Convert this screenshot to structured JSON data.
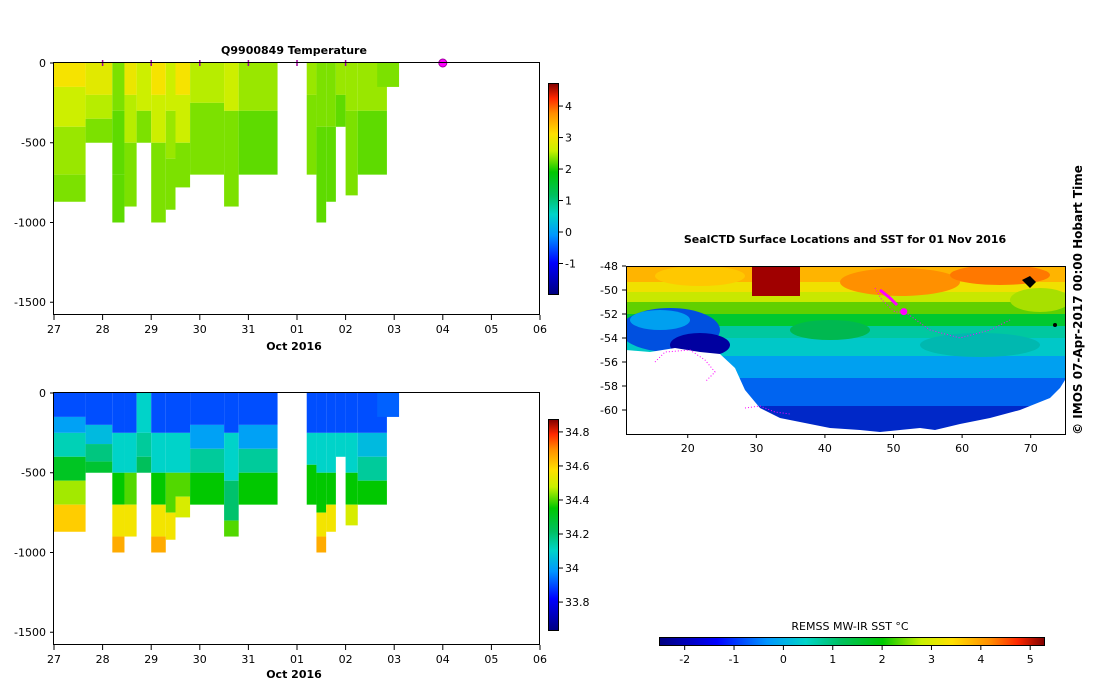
{
  "chart_data": [
    {
      "type": "heatmap",
      "name": "temperature-section",
      "title": "Q9900849  Temperature",
      "xlabel": "Oct 2016",
      "x_ticks": [
        "27",
        "28",
        "29",
        "30",
        "31",
        "01",
        "02",
        "03",
        "04",
        "05",
        "06"
      ],
      "y_ticks": [
        "0",
        "-500",
        "-1000",
        "-1500"
      ],
      "ylim": [
        -1580,
        0
      ],
      "colorbar_ticks": [
        "4",
        "3",
        "2",
        "1",
        "0",
        "-1"
      ],
      "colorbar_range": [
        -2,
        4.7
      ],
      "profile_markers": [
        28,
        29,
        30,
        31,
        32,
        33
      ],
      "current_marker": 35,
      "profiles": [
        {
          "x0": 27.0,
          "x1": 27.65,
          "depth": -870,
          "layers": [
            [
              0,
              3.0
            ],
            [
              -150,
              2.6
            ],
            [
              -400,
              2.4
            ],
            [
              -700,
              2.3
            ]
          ]
        },
        {
          "x0": 27.65,
          "x1": 28.2,
          "depth": -500,
          "layers": [
            [
              0,
              2.8
            ],
            [
              -200,
              2.5
            ],
            [
              -350,
              2.3
            ]
          ]
        },
        {
          "x0": 28.2,
          "x1": 28.45,
          "depth": -1000,
          "layers": [
            [
              0,
              2.3
            ],
            [
              -300,
              2.2
            ],
            [
              -700,
              2.2
            ]
          ]
        },
        {
          "x0": 28.45,
          "x1": 28.7,
          "depth": -900,
          "layers": [
            [
              0,
              2.9
            ],
            [
              -200,
              2.5
            ],
            [
              -500,
              2.3
            ]
          ]
        },
        {
          "x0": 28.7,
          "x1": 29.0,
          "depth": -500,
          "layers": [
            [
              0,
              2.6
            ],
            [
              -300,
              2.3
            ]
          ]
        },
        {
          "x0": 29.0,
          "x1": 29.3,
          "depth": -1000,
          "layers": [
            [
              0,
              3.0
            ],
            [
              -200,
              2.6
            ],
            [
              -500,
              2.3
            ]
          ]
        },
        {
          "x0": 29.3,
          "x1": 29.5,
          "depth": -920,
          "layers": [
            [
              0,
              2.6
            ],
            [
              -300,
              2.4
            ],
            [
              -600,
              2.3
            ]
          ]
        },
        {
          "x0": 29.5,
          "x1": 29.8,
          "depth": -780,
          "layers": [
            [
              0,
              3.0
            ],
            [
              -200,
              2.6
            ],
            [
              -500,
              2.3
            ]
          ]
        },
        {
          "x0": 29.8,
          "x1": 30.5,
          "depth": -700,
          "layers": [
            [
              0,
              2.5
            ],
            [
              -250,
              2.3
            ]
          ]
        },
        {
          "x0": 30.5,
          "x1": 30.8,
          "depth": -900,
          "layers": [
            [
              0,
              2.6
            ],
            [
              -300,
              2.3
            ]
          ]
        },
        {
          "x0": 30.8,
          "x1": 31.6,
          "depth": -700,
          "layers": [
            [
              0,
              2.4
            ],
            [
              -300,
              2.2
            ]
          ]
        },
        {
          "x0": 32.2,
          "x1": 32.4,
          "depth": -700,
          "layers": [
            [
              0,
              2.4
            ],
            [
              -200,
              2.3
            ]
          ]
        },
        {
          "x0": 32.4,
          "x1": 32.6,
          "depth": -1000,
          "layers": [
            [
              0,
              2.3
            ],
            [
              -400,
              2.2
            ]
          ]
        },
        {
          "x0": 32.6,
          "x1": 32.8,
          "depth": -870,
          "layers": [
            [
              0,
              2.3
            ],
            [
              -400,
              2.2
            ]
          ]
        },
        {
          "x0": 32.8,
          "x1": 33.0,
          "depth": -400,
          "layers": [
            [
              0,
              2.4
            ],
            [
              -200,
              2.2
            ]
          ]
        },
        {
          "x0": 33.0,
          "x1": 33.25,
          "depth": -830,
          "layers": [
            [
              0,
              2.4
            ],
            [
              -300,
              2.3
            ]
          ]
        },
        {
          "x0": 33.25,
          "x1": 33.85,
          "depth": -700,
          "layers": [
            [
              0,
              2.4
            ],
            [
              -300,
              2.2
            ]
          ]
        },
        {
          "x0": 33.65,
          "x1": 34.1,
          "depth": -150,
          "layers": [
            [
              0,
              2.3
            ]
          ]
        }
      ]
    },
    {
      "type": "heatmap",
      "name": "salinity-section",
      "xlabel": "Oct 2016",
      "x_ticks": [
        "27",
        "28",
        "29",
        "30",
        "31",
        "01",
        "02",
        "03",
        "04",
        "05",
        "06"
      ],
      "y_ticks": [
        "0",
        "-500",
        "-1000",
        "-1500"
      ],
      "ylim": [
        -1580,
        0
      ],
      "colorbar_ticks": [
        "34.8",
        "34.6",
        "34.4",
        "34.2",
        "34",
        "33.8"
      ],
      "colorbar_range": [
        33.63,
        34.87
      ],
      "profiles": [
        {
          "x0": 27.0,
          "x1": 27.65,
          "depth": -870,
          "layers": [
            [
              0,
              33.9
            ],
            [
              -150,
              34.0
            ],
            [
              -250,
              34.12
            ],
            [
              -400,
              34.3
            ],
            [
              -550,
              34.45
            ],
            [
              -700,
              34.6
            ]
          ]
        },
        {
          "x0": 27.65,
          "x1": 28.2,
          "depth": -500,
          "layers": [
            [
              0,
              33.9
            ],
            [
              -200,
              34.05
            ],
            [
              -320,
              34.18
            ],
            [
              -430,
              34.28
            ]
          ]
        },
        {
          "x0": 28.2,
          "x1": 28.45,
          "depth": -1000,
          "layers": [
            [
              0,
              33.9
            ],
            [
              -250,
              34.1
            ],
            [
              -500,
              34.35
            ],
            [
              -700,
              34.55
            ],
            [
              -900,
              34.65
            ]
          ]
        },
        {
          "x0": 28.45,
          "x1": 28.7,
          "depth": -900,
          "layers": [
            [
              0,
              33.9
            ],
            [
              -250,
              34.1
            ],
            [
              -500,
              34.4
            ],
            [
              -700,
              34.55
            ]
          ]
        },
        {
          "x0": 28.7,
          "x1": 29.0,
          "depth": -500,
          "layers": [
            [
              0,
              34.1
            ],
            [
              -250,
              34.15
            ],
            [
              -400,
              34.22
            ]
          ]
        },
        {
          "x0": 29.0,
          "x1": 29.3,
          "depth": -1000,
          "layers": [
            [
              0,
              33.9
            ],
            [
              -250,
              34.1
            ],
            [
              -500,
              34.35
            ],
            [
              -700,
              34.55
            ],
            [
              -900,
              34.65
            ]
          ]
        },
        {
          "x0": 29.3,
          "x1": 29.5,
          "depth": -920,
          "layers": [
            [
              0,
              33.9
            ],
            [
              -250,
              34.1
            ],
            [
              -500,
              34.4
            ],
            [
              -750,
              34.55
            ]
          ]
        },
        {
          "x0": 29.5,
          "x1": 29.8,
          "depth": -780,
          "layers": [
            [
              0,
              33.9
            ],
            [
              -250,
              34.1
            ],
            [
              -500,
              34.4
            ],
            [
              -650,
              34.5
            ]
          ]
        },
        {
          "x0": 29.8,
          "x1": 30.5,
          "depth": -700,
          "layers": [
            [
              0,
              33.9
            ],
            [
              -200,
              34.0
            ],
            [
              -350,
              34.15
            ],
            [
              -500,
              34.35
            ]
          ]
        },
        {
          "x0": 30.5,
          "x1": 30.8,
          "depth": -900,
          "layers": [
            [
              0,
              33.9
            ],
            [
              -250,
              34.1
            ],
            [
              -550,
              34.2
            ],
            [
              -800,
              34.4
            ]
          ]
        },
        {
          "x0": 30.8,
          "x1": 31.6,
          "depth": -700,
          "layers": [
            [
              0,
              33.9
            ],
            [
              -200,
              34.0
            ],
            [
              -350,
              34.15
            ],
            [
              -500,
              34.35
            ]
          ]
        },
        {
          "x0": 32.2,
          "x1": 32.4,
          "depth": -700,
          "layers": [
            [
              0,
              33.9
            ],
            [
              -250,
              34.1
            ],
            [
              -450,
              34.35
            ]
          ]
        },
        {
          "x0": 32.4,
          "x1": 32.6,
          "depth": -1000,
          "layers": [
            [
              0,
              33.9
            ],
            [
              -250,
              34.1
            ],
            [
              -500,
              34.35
            ],
            [
              -750,
              34.55
            ],
            [
              -900,
              34.65
            ]
          ]
        },
        {
          "x0": 32.6,
          "x1": 32.8,
          "depth": -870,
          "layers": [
            [
              0,
              33.9
            ],
            [
              -250,
              34.1
            ],
            [
              -500,
              34.35
            ],
            [
              -700,
              34.55
            ]
          ]
        },
        {
          "x0": 32.8,
          "x1": 33.0,
          "depth": -400,
          "layers": [
            [
              0,
              33.9
            ],
            [
              -250,
              34.1
            ]
          ]
        },
        {
          "x0": 33.0,
          "x1": 33.25,
          "depth": -830,
          "layers": [
            [
              0,
              33.9
            ],
            [
              -250,
              34.1
            ],
            [
              -500,
              34.35
            ],
            [
              -700,
              34.5
            ]
          ]
        },
        {
          "x0": 33.25,
          "x1": 33.85,
          "depth": -700,
          "layers": [
            [
              0,
              33.9
            ],
            [
              -250,
              34.05
            ],
            [
              -400,
              34.15
            ],
            [
              -550,
              34.35
            ]
          ]
        },
        {
          "x0": 33.65,
          "x1": 34.1,
          "depth": -150,
          "layers": [
            [
              0,
              33.92
            ]
          ]
        }
      ]
    },
    {
      "type": "heatmap",
      "name": "sst-map",
      "title": "SealCTD Surface Locations and SST for 01 Nov 2016",
      "x_ticks": [
        "20",
        "30",
        "40",
        "50",
        "60",
        "70"
      ],
      "y_ticks": [
        "-48",
        "-50",
        "-52",
        "-54",
        "-56",
        "-58",
        "-60"
      ],
      "xlim": [
        11,
        75
      ],
      "ylim": [
        -62,
        -48
      ],
      "colorbar_label": "REMSS MW-IR SST °C",
      "colorbar_ticks": [
        "-2",
        "-1",
        "0",
        "1",
        "2",
        "3",
        "4",
        "5"
      ],
      "colorbar_range": [
        -2.5,
        5.3
      ],
      "seal_track_current": [
        51.5,
        -51.8
      ],
      "side_label": "© IMOS 07-Apr-2017 00:00 Hobart Time"
    }
  ]
}
